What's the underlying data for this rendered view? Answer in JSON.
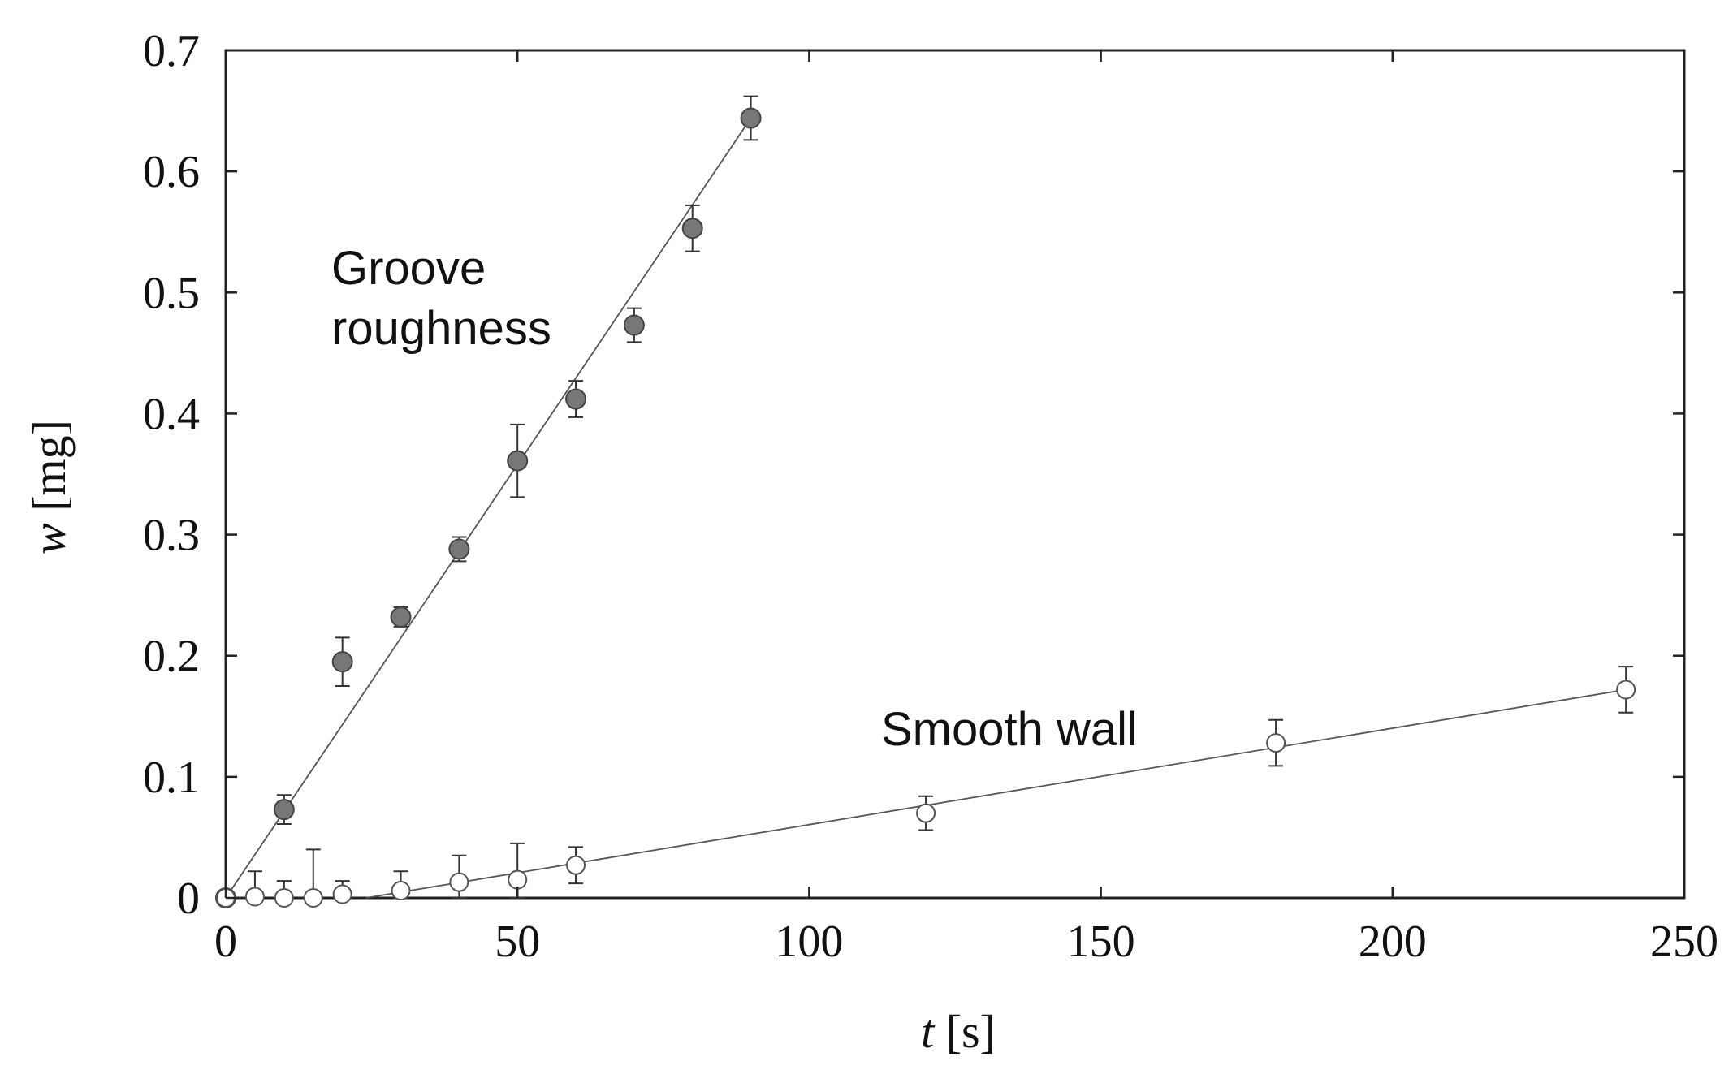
{
  "chart_data": {
    "type": "scatter",
    "xlabel_var": "t",
    "xlabel_unit": " [s]",
    "ylabel_var": "w",
    "ylabel_unit": " [mg]",
    "xlim": [
      0,
      250
    ],
    "ylim": [
      0,
      0.7
    ],
    "x_ticks": [
      0,
      50,
      100,
      150,
      200,
      250
    ],
    "y_ticks": [
      0,
      0.1,
      0.2,
      0.3,
      0.4,
      0.5,
      0.6,
      0.7
    ],
    "x_tick_labels": [
      "0",
      "50",
      "100",
      "150",
      "200",
      "250"
    ],
    "y_tick_labels": [
      "0",
      "0.1",
      "0.2",
      "0.3",
      "0.4",
      "0.5",
      "0.6",
      "0.7"
    ],
    "grid": false,
    "annotations": {
      "groove_line1": "Groove",
      "groove_line2": "roughness",
      "smooth": "Smooth wall"
    },
    "series": [
      {
        "marker": "filled",
        "color": "#777777",
        "points": [
          {
            "x": 0,
            "y": 0.0,
            "err": 0.0
          },
          {
            "x": 10,
            "y": 0.073,
            "err": 0.012
          },
          {
            "x": 20,
            "y": 0.195,
            "err": 0.02
          },
          {
            "x": 30,
            "y": 0.232,
            "err": 0.008
          },
          {
            "x": 40,
            "y": 0.288,
            "err": 0.01
          },
          {
            "x": 50,
            "y": 0.361,
            "err": 0.03
          },
          {
            "x": 60,
            "y": 0.412,
            "err": 0.015
          },
          {
            "x": 70,
            "y": 0.473,
            "err": 0.014
          },
          {
            "x": 80,
            "y": 0.553,
            "err": 0.019
          },
          {
            "x": 90,
            "y": 0.644,
            "err": 0.018
          }
        ],
        "fit": {
          "x": [
            0,
            90
          ],
          "y": [
            0.0,
            0.644
          ]
        }
      },
      {
        "marker": "open",
        "color": "#555555",
        "points": [
          {
            "x": 0,
            "y": 0.0,
            "err": 0.0
          },
          {
            "x": 5,
            "y": 0.001,
            "err": 0.021
          },
          {
            "x": 10,
            "y": 0.0,
            "err": 0.014
          },
          {
            "x": 15,
            "y": 0.0,
            "err": 0.04
          },
          {
            "x": 20,
            "y": 0.003,
            "err": 0.011
          },
          {
            "x": 30,
            "y": 0.006,
            "err": 0.016
          },
          {
            "x": 40,
            "y": 0.013,
            "err": 0.022
          },
          {
            "x": 50,
            "y": 0.015,
            "err": 0.03
          },
          {
            "x": 60,
            "y": 0.027,
            "err": 0.015
          },
          {
            "x": 120,
            "y": 0.07,
            "err": 0.014
          },
          {
            "x": 180,
            "y": 0.128,
            "err": 0.019
          },
          {
            "x": 240,
            "y": 0.172,
            "err": 0.019
          }
        ],
        "fit": {
          "x": [
            24,
            240
          ],
          "y": [
            0.0,
            0.172
          ]
        }
      }
    ]
  }
}
